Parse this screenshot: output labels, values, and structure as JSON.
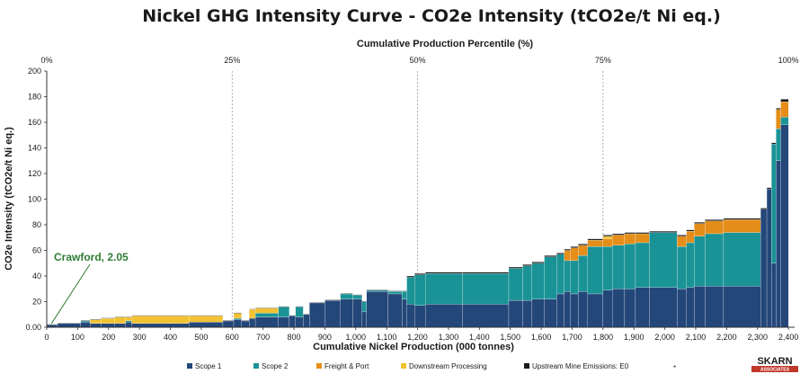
{
  "chart_data": {
    "type": "bar",
    "title": "Nickel GHG Intensity Curve - CO2e Intensity (tCO2e/t Ni eq.)",
    "xlabel": "Cumulative Nickel Production (000 tonnes)",
    "ylabel": "CO2e Intensity (tCO2e/t Ni eq.)",
    "x2label": "Cumulative Production Percentile (%)",
    "xlim": [
      0,
      2420
    ],
    "ylim": [
      0,
      200
    ],
    "x_ticks": [
      0,
      100,
      200,
      300,
      400,
      500,
      600,
      700,
      800,
      900,
      1000,
      1100,
      1200,
      1300,
      1400,
      1500,
      1600,
      1700,
      1800,
      1900,
      2000,
      2100,
      2200,
      2300,
      2400
    ],
    "x_tick_labels": [
      "0",
      "100",
      "200",
      "300",
      "400",
      "500",
      "600",
      "700",
      "800",
      "900",
      "1,000",
      "1,100",
      "1,200",
      "1,300",
      "1,400",
      "1,500",
      "1,600",
      "1,700",
      "1,800",
      "1,900",
      "2,000",
      "2,100",
      "2,200",
      "2,300",
      "2,400"
    ],
    "y_ticks": [
      0,
      20,
      40,
      60,
      80,
      100,
      120,
      140,
      160,
      180,
      200
    ],
    "y_tick_labels": [
      "0.00",
      "20",
      "40",
      "60",
      "80",
      "100",
      "120",
      "140",
      "160",
      "180",
      "200"
    ],
    "percentile_ticks": [
      {
        "label": "0%",
        "x": 0
      },
      {
        "label": "25%",
        "x": 600
      },
      {
        "label": "50%",
        "x": 1200
      },
      {
        "label": "75%",
        "x": 1800
      },
      {
        "label": "100%",
        "x": 2400
      }
    ],
    "series_order": [
      "scope1",
      "scope2",
      "freight",
      "downstream",
      "upstream"
    ],
    "series": [
      {
        "key": "scope1",
        "name": "Scope 1",
        "color": "#24477a"
      },
      {
        "key": "scope2",
        "name": "Scope 2",
        "color": "#1a9396"
      },
      {
        "key": "freight",
        "name": "Freight & Port",
        "color": "#e48e19"
      },
      {
        "key": "downstream",
        "name": "Downstream Processing",
        "color": "#f2c232"
      },
      {
        "key": "upstream",
        "name": "Upstream Mine Emissions: E0",
        "color": "#1a1a1a"
      }
    ],
    "legend_position": "bottom",
    "legend_extra": "*",
    "annotation": {
      "text": "Crawford, 2.05",
      "x": 15,
      "y": 2.05
    },
    "bars": [
      {
        "x0": 0,
        "x1": 35,
        "scope1": 2.05,
        "scope2": 0,
        "freight": 0,
        "downstream": 0,
        "upstream": 0.2
      },
      {
        "x0": 35,
        "x1": 110,
        "scope1": 3,
        "scope2": 0,
        "freight": 0,
        "downstream": 0,
        "upstream": 0.3
      },
      {
        "x0": 110,
        "x1": 140,
        "scope1": 4,
        "scope2": 1,
        "freight": 0,
        "downstream": 0,
        "upstream": 0.3
      },
      {
        "x0": 140,
        "x1": 175,
        "scope1": 3,
        "scope2": 0,
        "freight": 0,
        "downstream": 3,
        "upstream": 0.3
      },
      {
        "x0": 175,
        "x1": 220,
        "scope1": 3,
        "scope2": 0,
        "freight": 0,
        "downstream": 4,
        "upstream": 0.3
      },
      {
        "x0": 220,
        "x1": 255,
        "scope1": 3,
        "scope2": 0,
        "freight": 0,
        "downstream": 5,
        "upstream": 0.3
      },
      {
        "x0": 255,
        "x1": 275,
        "scope1": 4,
        "scope2": 1,
        "freight": 0,
        "downstream": 3,
        "upstream": 0.3
      },
      {
        "x0": 275,
        "x1": 460,
        "scope1": 3,
        "scope2": 0,
        "freight": 0,
        "downstream": 6,
        "upstream": 0.3
      },
      {
        "x0": 460,
        "x1": 570,
        "scope1": 4,
        "scope2": 0,
        "freight": 0,
        "downstream": 5,
        "upstream": 0.3
      },
      {
        "x0": 570,
        "x1": 605,
        "scope1": 5,
        "scope2": 0,
        "freight": 0,
        "downstream": 0,
        "upstream": 0.3
      },
      {
        "x0": 605,
        "x1": 630,
        "scope1": 6,
        "scope2": 1,
        "freight": 0,
        "downstream": 4,
        "upstream": 0.3
      },
      {
        "x0": 630,
        "x1": 655,
        "scope1": 5,
        "scope2": 0,
        "freight": 0,
        "downstream": 0,
        "upstream": 0.3
      },
      {
        "x0": 655,
        "x1": 675,
        "scope1": 7,
        "scope2": 0,
        "freight": 0,
        "downstream": 7,
        "upstream": 0.3
      },
      {
        "x0": 675,
        "x1": 750,
        "scope1": 8,
        "scope2": 3,
        "freight": 0,
        "downstream": 4,
        "upstream": 0.3
      },
      {
        "x0": 750,
        "x1": 785,
        "scope1": 8,
        "scope2": 8,
        "freight": 0,
        "downstream": 0,
        "upstream": 0.3
      },
      {
        "x0": 785,
        "x1": 805,
        "scope1": 9,
        "scope2": 0,
        "freight": 0,
        "downstream": 0,
        "upstream": 0.3
      },
      {
        "x0": 805,
        "x1": 830,
        "scope1": 8,
        "scope2": 8,
        "freight": 0,
        "downstream": 0,
        "upstream": 0.3
      },
      {
        "x0": 830,
        "x1": 850,
        "scope1": 10,
        "scope2": 0,
        "freight": 0,
        "downstream": 0,
        "upstream": 0.3
      },
      {
        "x0": 850,
        "x1": 900,
        "scope1": 19,
        "scope2": 0,
        "freight": 0,
        "downstream": 0,
        "upstream": 0.4
      },
      {
        "x0": 900,
        "x1": 950,
        "scope1": 21,
        "scope2": 0,
        "freight": 0,
        "downstream": 0,
        "upstream": 0.4
      },
      {
        "x0": 950,
        "x1": 990,
        "scope1": 22,
        "scope2": 4,
        "freight": 0,
        "downstream": 0,
        "upstream": 0.4
      },
      {
        "x0": 990,
        "x1": 1020,
        "scope1": 22,
        "scope2": 3,
        "freight": 0,
        "downstream": 0,
        "upstream": 0.4
      },
      {
        "x0": 1020,
        "x1": 1035,
        "scope1": 12,
        "scope2": 8,
        "freight": 0,
        "downstream": 0,
        "upstream": 0.4
      },
      {
        "x0": 1035,
        "x1": 1105,
        "scope1": 28,
        "scope2": 1,
        "freight": 0,
        "downstream": 0,
        "upstream": 0.4
      },
      {
        "x0": 1105,
        "x1": 1150,
        "scope1": 26,
        "scope2": 2,
        "freight": 0,
        "downstream": 0,
        "upstream": 0.4
      },
      {
        "x0": 1150,
        "x1": 1165,
        "scope1": 22,
        "scope2": 6,
        "freight": 0,
        "downstream": 0,
        "upstream": 0.4
      },
      {
        "x0": 1165,
        "x1": 1190,
        "scope1": 18,
        "scope2": 21,
        "freight": 0,
        "downstream": 0,
        "upstream": 1
      },
      {
        "x0": 1190,
        "x1": 1225,
        "scope1": 17,
        "scope2": 24,
        "freight": 0,
        "downstream": 0,
        "upstream": 1
      },
      {
        "x0": 1225,
        "x1": 1345,
        "scope1": 18,
        "scope2": 24,
        "freight": 0,
        "downstream": 0,
        "upstream": 1
      },
      {
        "x0": 1345,
        "x1": 1495,
        "scope1": 18,
        "scope2": 24,
        "freight": 0,
        "downstream": 0,
        "upstream": 1
      },
      {
        "x0": 1495,
        "x1": 1540,
        "scope1": 21,
        "scope2": 25,
        "freight": 0,
        "downstream": 0,
        "upstream": 1
      },
      {
        "x0": 1540,
        "x1": 1570,
        "scope1": 21,
        "scope2": 27,
        "freight": 0,
        "downstream": 0,
        "upstream": 1
      },
      {
        "x0": 1570,
        "x1": 1610,
        "scope1": 22,
        "scope2": 28,
        "freight": 0,
        "downstream": 0,
        "upstream": 1
      },
      {
        "x0": 1610,
        "x1": 1650,
        "scope1": 22,
        "scope2": 33,
        "freight": 0,
        "downstream": 0,
        "upstream": 1
      },
      {
        "x0": 1650,
        "x1": 1675,
        "scope1": 26,
        "scope2": 31,
        "freight": 0,
        "downstream": 0,
        "upstream": 1
      },
      {
        "x0": 1675,
        "x1": 1695,
        "scope1": 28,
        "scope2": 24,
        "freight": 8,
        "downstream": 0,
        "upstream": 1
      },
      {
        "x0": 1695,
        "x1": 1720,
        "scope1": 26,
        "scope2": 26,
        "freight": 10,
        "downstream": 0,
        "upstream": 1
      },
      {
        "x0": 1720,
        "x1": 1750,
        "scope1": 28,
        "scope2": 28,
        "freight": 8,
        "downstream": 0,
        "upstream": 1
      },
      {
        "x0": 1750,
        "x1": 1800,
        "scope1": 26,
        "scope2": 37,
        "freight": 5,
        "downstream": 0,
        "upstream": 1
      },
      {
        "x0": 1800,
        "x1": 1830,
        "scope1": 29,
        "scope2": 34,
        "freight": 6,
        "downstream": 2,
        "upstream": 1
      },
      {
        "x0": 1830,
        "x1": 1870,
        "scope1": 30,
        "scope2": 34,
        "freight": 8,
        "downstream": 0,
        "upstream": 1
      },
      {
        "x0": 1870,
        "x1": 1905,
        "scope1": 30,
        "scope2": 35,
        "freight": 8,
        "downstream": 0,
        "upstream": 1
      },
      {
        "x0": 1905,
        "x1": 1950,
        "scope1": 31,
        "scope2": 35,
        "freight": 7,
        "downstream": 0,
        "upstream": 1
      },
      {
        "x0": 1950,
        "x1": 2040,
        "scope1": 31,
        "scope2": 43,
        "freight": 0,
        "downstream": 0,
        "upstream": 1
      },
      {
        "x0": 2040,
        "x1": 2070,
        "scope1": 30,
        "scope2": 33,
        "freight": 8,
        "downstream": 0,
        "upstream": 1
      },
      {
        "x0": 2070,
        "x1": 2095,
        "scope1": 31,
        "scope2": 35,
        "freight": 9,
        "downstream": 0,
        "upstream": 1
      },
      {
        "x0": 2095,
        "x1": 2130,
        "scope1": 32,
        "scope2": 39,
        "freight": 10,
        "downstream": 0,
        "upstream": 1
      },
      {
        "x0": 2130,
        "x1": 2190,
        "scope1": 32,
        "scope2": 41,
        "freight": 10,
        "downstream": 0,
        "upstream": 1
      },
      {
        "x0": 2190,
        "x1": 2310,
        "scope1": 32,
        "scope2": 42,
        "freight": 10,
        "downstream": 0,
        "upstream": 1
      },
      {
        "x0": 2310,
        "x1": 2330,
        "scope1": 92,
        "scope2": 0,
        "freight": 0,
        "downstream": 0,
        "upstream": 1
      },
      {
        "x0": 2330,
        "x1": 2345,
        "scope1": 108,
        "scope2": 0,
        "freight": 0,
        "downstream": 0,
        "upstream": 1
      },
      {
        "x0": 2345,
        "x1": 2360,
        "scope1": 50,
        "scope2": 93,
        "freight": 0,
        "downstream": 0,
        "upstream": 1
      },
      {
        "x0": 2360,
        "x1": 2375,
        "scope1": 130,
        "scope2": 25,
        "freight": 15,
        "downstream": 0,
        "upstream": 1
      },
      {
        "x0": 2375,
        "x1": 2400,
        "scope1": 158,
        "scope2": 6,
        "freight": 12,
        "downstream": 0,
        "upstream": 2
      }
    ]
  },
  "logo": {
    "name": "SKARN",
    "sub": "ASSOCIATES"
  }
}
